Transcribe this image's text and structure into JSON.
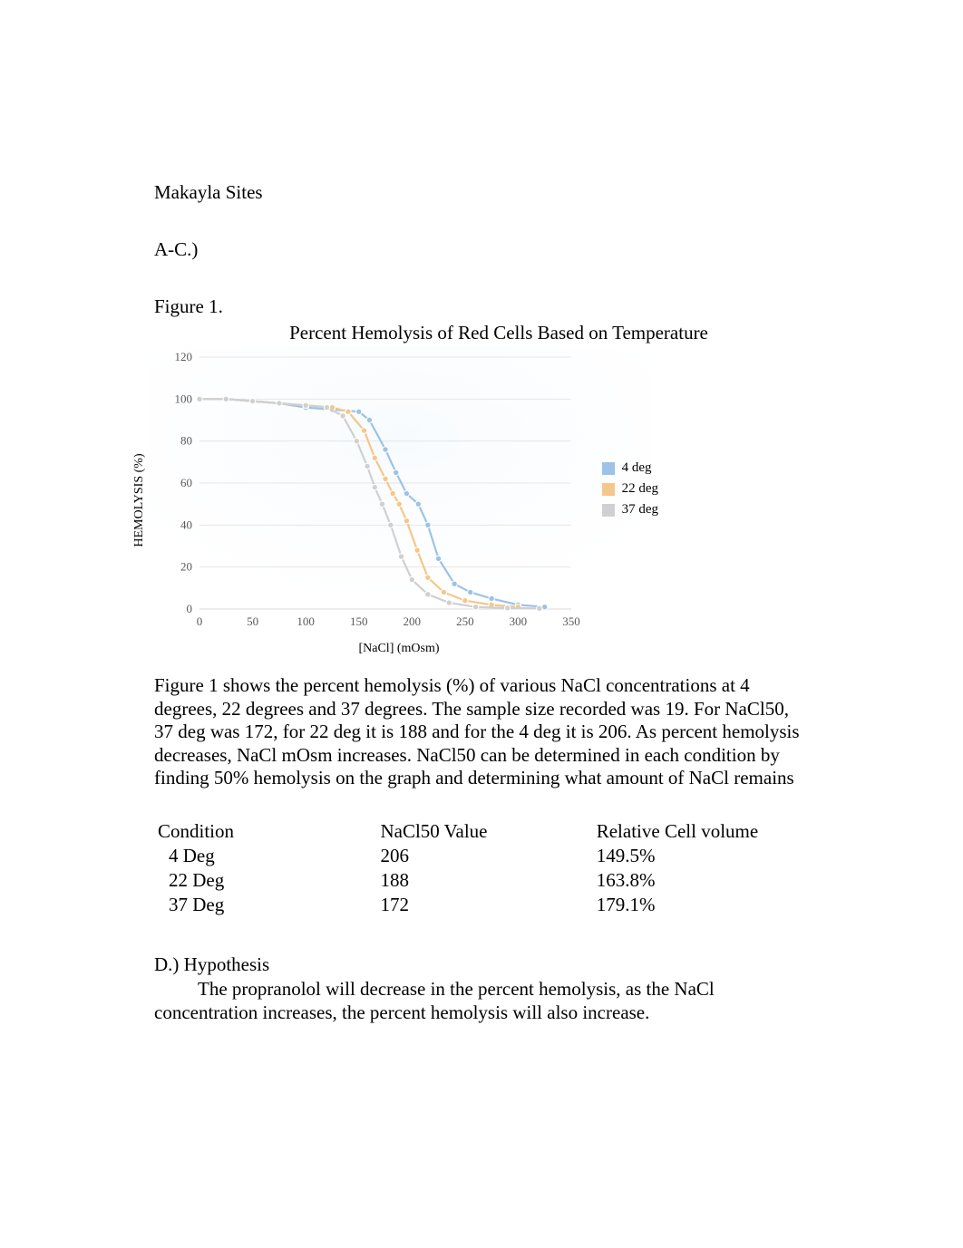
{
  "author": "Makayla Sites",
  "section_ac_label": "A-C.)",
  "figure_label": "Figure 1.",
  "chart": {
    "type": "line",
    "title": "Percent Hemolysis of Red Cells Based on Temperature",
    "title_fontsize": 21,
    "x_label": "[NaCl] (mOsm)",
    "y_label": "HEMOLYSIS (%)",
    "label_fontsize": 14,
    "tick_fontsize": 13,
    "x_ticks": [
      0,
      50,
      100,
      150,
      200,
      250,
      300,
      350
    ],
    "y_ticks": [
      0,
      20,
      40,
      60,
      80,
      100,
      120
    ],
    "xlim": [
      0,
      350
    ],
    "ylim": [
      0,
      120
    ],
    "grid_color": "#e6e6e6",
    "axis_line_color": "#d9d9d9",
    "tick_color": "#595959",
    "background_gradient_top": "#f8fbfe",
    "background_gradient_bottom": "#ffffff",
    "line_width": 2.2,
    "marker_size": 3.2,
    "marker_shape": "circle",
    "series": [
      {
        "name": "4 deg",
        "color": "#9cc3e6",
        "points": [
          [
            0,
            100
          ],
          [
            25,
            100
          ],
          [
            50,
            99
          ],
          [
            75,
            98
          ],
          [
            100,
            96
          ],
          [
            125,
            95
          ],
          [
            150,
            94
          ],
          [
            160,
            90
          ],
          [
            175,
            76
          ],
          [
            185,
            65
          ],
          [
            195,
            55
          ],
          [
            206,
            50
          ],
          [
            215,
            40
          ],
          [
            225,
            24
          ],
          [
            240,
            12
          ],
          [
            255,
            8
          ],
          [
            275,
            5
          ],
          [
            300,
            2
          ],
          [
            325,
            1
          ]
        ]
      },
      {
        "name": "22 deg",
        "color": "#f4c78a",
        "points": [
          [
            0,
            100
          ],
          [
            25,
            100
          ],
          [
            50,
            99
          ],
          [
            75,
            98
          ],
          [
            100,
            97
          ],
          [
            125,
            96
          ],
          [
            140,
            94
          ],
          [
            155,
            85
          ],
          [
            165,
            72
          ],
          [
            175,
            62
          ],
          [
            182,
            55
          ],
          [
            188,
            50
          ],
          [
            195,
            42
          ],
          [
            205,
            28
          ],
          [
            215,
            15
          ],
          [
            230,
            8
          ],
          [
            250,
            4
          ],
          [
            275,
            2
          ],
          [
            300,
            1
          ]
        ]
      },
      {
        "name": "37 deg",
        "color": "#d0d0d0",
        "points": [
          [
            0,
            100
          ],
          [
            25,
            100
          ],
          [
            50,
            99
          ],
          [
            75,
            98
          ],
          [
            100,
            97
          ],
          [
            120,
            96
          ],
          [
            135,
            92
          ],
          [
            148,
            80
          ],
          [
            158,
            68
          ],
          [
            165,
            58
          ],
          [
            172,
            50
          ],
          [
            180,
            40
          ],
          [
            190,
            25
          ],
          [
            200,
            14
          ],
          [
            215,
            7
          ],
          [
            235,
            3
          ],
          [
            260,
            1
          ],
          [
            290,
            0.5
          ],
          [
            320,
            0.3
          ]
        ]
      }
    ]
  },
  "caption": "Figure 1 shows the percent hemolysis (%) of various NaCl concentrations at 4 degrees, 22 degrees and 37 degrees. The sample size recorded was 19. For NaCl50, 37 deg was 172, for 22 deg it is 188 and for the 4 deg it is 206. As percent hemolysis decreases, NaCl mOsm increases. NaCl50 can be determined in each condition by finding 50% hemolysis on the graph and determining what amount of NaCl remains",
  "table": {
    "columns": [
      "Condition",
      "NaCl50 Value",
      "Relative Cell volume"
    ],
    "rows": [
      [
        "4 Deg",
        "206",
        "149.5%"
      ],
      [
        "22 Deg",
        "188",
        "163.8%"
      ],
      [
        "37 Deg",
        "172",
        "179.1%"
      ]
    ]
  },
  "hypothesis_label": "D.) Hypothesis",
  "hypothesis_body": "The propranolol will decrease in the percent hemolysis, as the NaCl concentration increases, the percent hemolysis will also increase."
}
